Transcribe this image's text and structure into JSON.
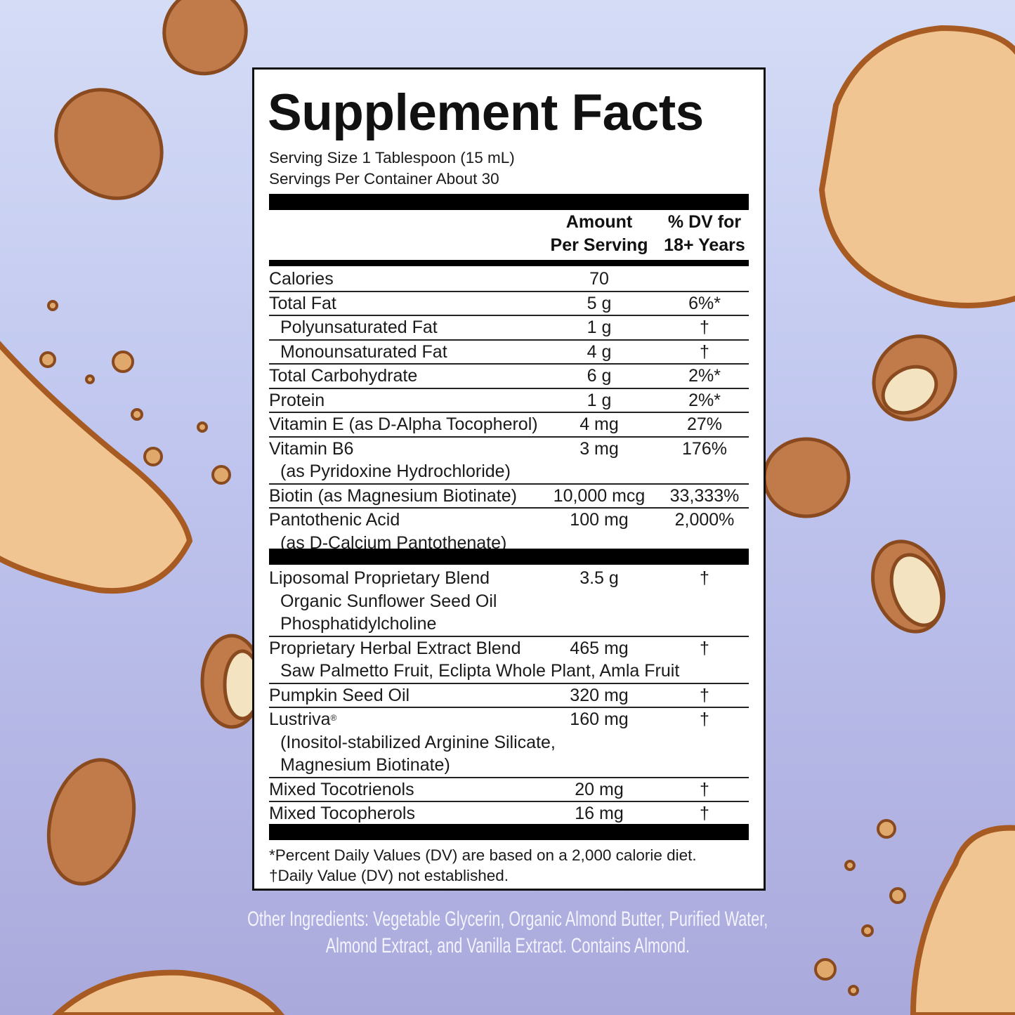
{
  "colors": {
    "background_top": "#d4dcf6",
    "background_bottom": "#aaa9dc",
    "almond": "#c17a4a",
    "almond_outline": "#8a4a1f",
    "cookie": "#f1c591",
    "cookie_outline": "#a75a22",
    "text": "#1a1a1a",
    "other_ingredients_text": "#f4f4ff"
  },
  "decorations": [
    "almond-icon",
    "cookie-icon"
  ],
  "panel": {
    "title": "Supplement Facts",
    "serving_size": "Serving Size 1 Tablespoon (15 mL)",
    "servings_per_container": "Servings Per Container About 30",
    "header": {
      "amount_line1": "Amount",
      "amount_line2": "Per Serving",
      "dv_line1": "% DV for",
      "dv_line2": "18+ Years"
    },
    "nutrients": [
      {
        "name": "Calories",
        "amount": "70",
        "dv": ""
      },
      {
        "name": "Total Fat",
        "amount": "5 g",
        "dv": "6%*"
      },
      {
        "name": "Polyunsaturated Fat",
        "amount": "1 g",
        "dv": "†",
        "indent": true
      },
      {
        "name": "Monounsaturated Fat",
        "amount": "4 g",
        "dv": "†",
        "indent": true
      },
      {
        "name": "Total Carbohydrate",
        "amount": "6 g",
        "dv": "2%*"
      },
      {
        "name": "Protein",
        "amount": "1 g",
        "dv": "2%*"
      },
      {
        "name": "Vitamin E (as D-Alpha Tocopherol)",
        "amount": "4 mg",
        "dv": "27%"
      },
      {
        "name": "Vitamin B6",
        "sub": [
          "(as Pyridoxine Hydrochloride)"
        ],
        "amount": "3 mg",
        "dv": "176%"
      },
      {
        "name": "Biotin (as Magnesium Biotinate)",
        "amount": "10,000 mcg",
        "dv": "33,333%"
      },
      {
        "name": "Pantothenic Acid",
        "sub": [
          "(as D-Calcium Pantothenate)"
        ],
        "amount": "100 mg",
        "dv": "2,000%"
      }
    ],
    "blends": [
      {
        "name": "Liposomal Proprietary Blend",
        "sub": [
          "Organic Sunflower Seed Oil",
          "Phosphatidylcholine"
        ],
        "amount": "3.5 g",
        "dv": "†"
      },
      {
        "name": "Proprietary Herbal Extract Blend",
        "sub": [
          "Saw Palmetto Fruit, Eclipta Whole Plant, Amla Fruit"
        ],
        "amount": "465 mg",
        "dv": "†"
      },
      {
        "name": "Pumpkin Seed Oil",
        "amount": "320 mg",
        "dv": "†"
      },
      {
        "name": "Lustriva",
        "sup": "®",
        "sub": [
          "(Inositol-stabilized Arginine Silicate,",
          "Magnesium Biotinate)"
        ],
        "amount": "160 mg",
        "dv": "†"
      },
      {
        "name": "Mixed Tocotrienols",
        "amount": "20 mg",
        "dv": "†"
      },
      {
        "name": "Mixed Tocopherols",
        "amount": "16 mg",
        "dv": "†"
      }
    ],
    "footnote_1": "*Percent Daily Values (DV) are based on a 2,000 calorie diet.",
    "footnote_2": "†Daily Value (DV) not established."
  },
  "other_ingredients": {
    "line1": "Other Ingredients: Vegetable Glycerin, Organic Almond Butter, Purified Water,",
    "line2": "Almond Extract, and Vanilla Extract. Contains Almond."
  }
}
